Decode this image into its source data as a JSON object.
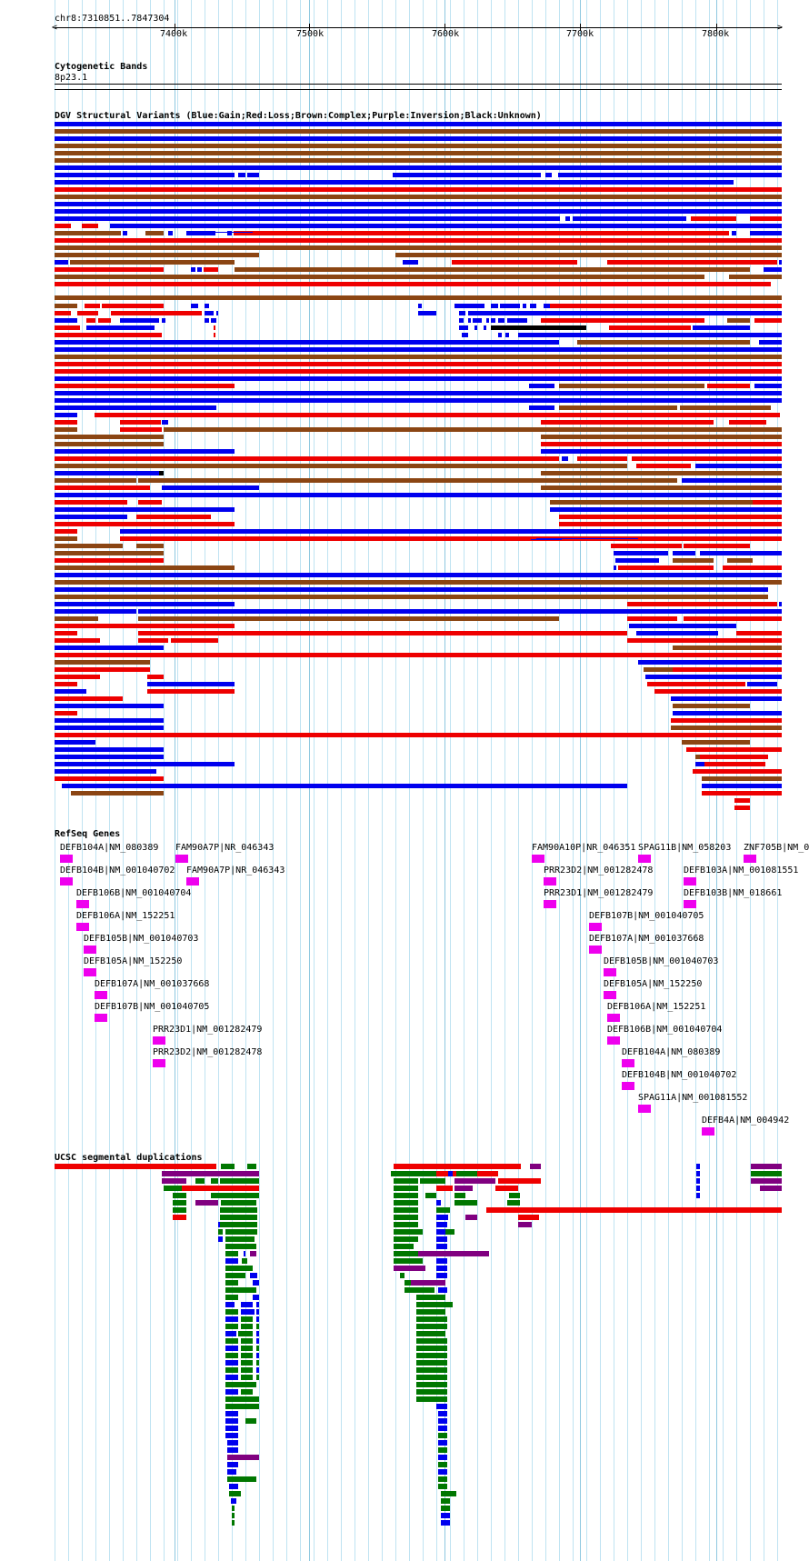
{
  "position": "chr8:7310851..7847304",
  "ruler_ticks": [
    "7400k",
    "7500k",
    "7600k",
    "7700k",
    "7800k"
  ],
  "tracks": {
    "cytoband": {
      "title": "Cytogenetic Bands",
      "band": "8p23.1"
    },
    "dgv": {
      "title": "DGV Structural Variants (Blue:Gain;Red:Loss;Brown:Complex;Purple:Inversion;Black:Unknown)"
    },
    "refseq": {
      "title": "RefSeq Genes"
    },
    "segdup": {
      "title": "UCSC segmental duplications"
    }
  },
  "colors": {
    "gain": "#0000ee",
    "loss": "#ee0000",
    "complex": "#8b4513",
    "inversion": "#800080",
    "unknown": "#000000",
    "gene": "#ee00ee",
    "segdup_green": "#007700",
    "grid": "#bfe3f2"
  },
  "genes": [
    "DEFB104A|NM_080389",
    "DEFB104B|NM_001040702",
    "DEFB106B|NM_001040704",
    "DEFB106A|NM_152251",
    "DEFB105B|NM_001040703",
    "DEFB105A|NM_152250",
    "DEFB107A|NM_001037668",
    "DEFB107B|NM_001040705",
    "PRR23D1|NM_001282479",
    "PRR23D2|NM_001282478",
    "FAM90A7P|NR_046343",
    "FAM90A7P|NR_046343",
    "FAM90A10P|NR_046351",
    "PRR23D2|NM_001282478",
    "PRR23D1|NM_001282479",
    "DEFB107B|NM_001040705",
    "DEFB107A|NM_001037668",
    "DEFB105B|NM_001040703",
    "DEFB105A|NM_152250",
    "DEFB106A|NM_152251",
    "DEFB106B|NM_001040704",
    "DEFB104A|NM_080389",
    "DEFB104B|NM_001040702",
    "SPAG11A|NM_001081552",
    "SPAG11B|NM_058203",
    "DEFB4A|NM_004942",
    "DEFB103A|NM_001081551",
    "DEFB103B|NM_018661",
    "ZNF705B|NM_0"
  ]
}
